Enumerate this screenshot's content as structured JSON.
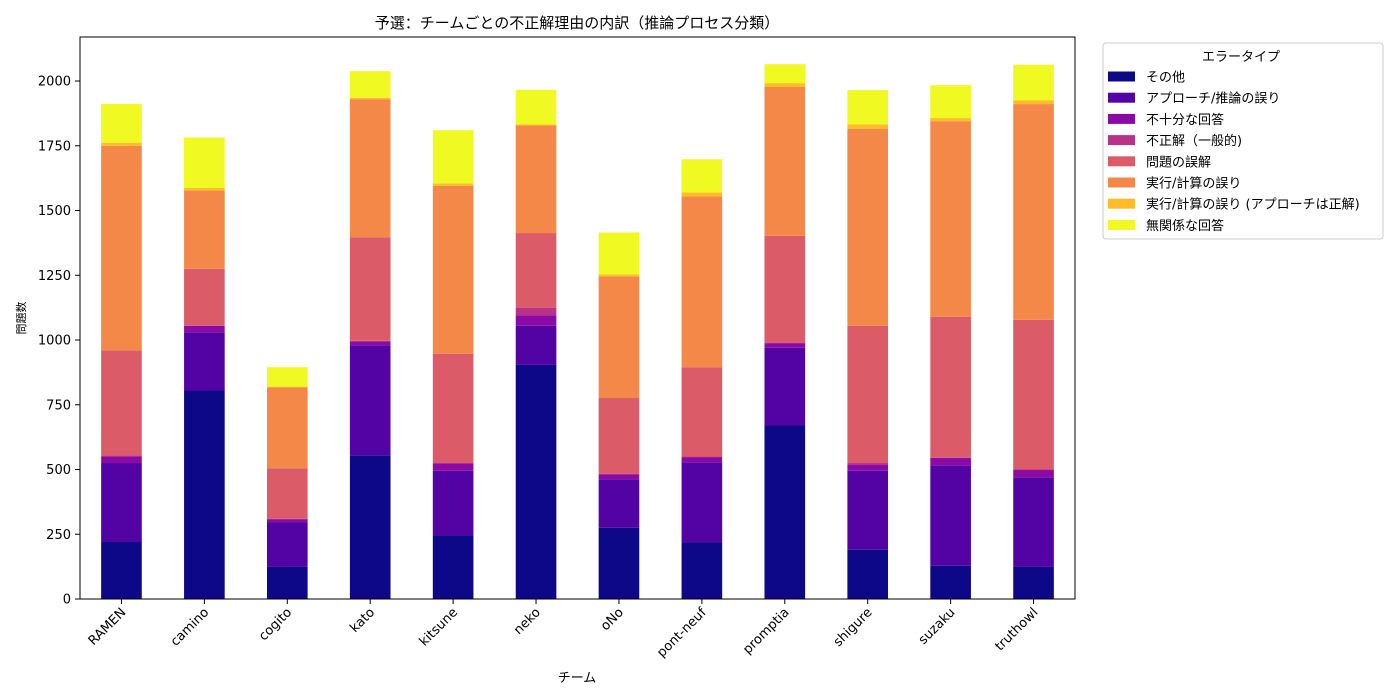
{
  "chart_data": {
    "type": "bar",
    "stacked": true,
    "title": "予選：チームごとの不正解理由の内訳（推論プロセス分類）",
    "xlabel": "チーム",
    "ylabel": "問題数",
    "ylim": [
      0,
      2170
    ],
    "yticks": [
      0,
      250,
      500,
      750,
      1000,
      1250,
      1500,
      1750,
      2000
    ],
    "grid": false,
    "legend": {
      "title": "エラータイプ",
      "placement": "outside-top-right"
    },
    "categories": [
      "RAMEN",
      "camino",
      "cogito",
      "kato",
      "kitsune",
      "neko",
      "oNo",
      "pont-neuf",
      "promptia",
      "shigure",
      "suzaku",
      "truthowl"
    ],
    "series": [
      {
        "name": "その他",
        "color": "#0d0887",
        "values": [
          220,
          805,
          125,
          555,
          245,
          905,
          275,
          218,
          670,
          190,
          128,
          125
        ]
      },
      {
        "name": "アプローチ/推論の誤り",
        "color": "#5302a3",
        "values": [
          305,
          225,
          172,
          425,
          250,
          150,
          187,
          310,
          300,
          305,
          387,
          345
        ]
      },
      {
        "name": "不十分な回答",
        "color": "#8b0aa5",
        "values": [
          25,
          25,
          10,
          15,
          28,
          40,
          20,
          20,
          18,
          25,
          30,
          28
        ]
      },
      {
        "name": "不正解（一般的)",
        "color": "#b83289",
        "values": [
          5,
          2,
          3,
          2,
          2,
          30,
          2,
          2,
          2,
          5,
          2,
          2
        ]
      },
      {
        "name": "問題の誤解",
        "color": "#db5c68",
        "values": [
          405,
          218,
          195,
          400,
          422,
          288,
          292,
          345,
          412,
          530,
          543,
          578
        ]
      },
      {
        "name": "実行/計算の誤り",
        "color": "#f48849",
        "values": [
          790,
          302,
          312,
          533,
          648,
          415,
          470,
          660,
          575,
          760,
          755,
          833
        ]
      },
      {
        "name": "実行/計算の誤り (アプローチは正解)",
        "color": "#febc2a",
        "values": [
          12,
          10,
          3,
          5,
          10,
          5,
          7,
          15,
          15,
          18,
          12,
          15
        ]
      },
      {
        "name": "無関係な回答",
        "color": "#f0f921",
        "values": [
          150,
          195,
          75,
          103,
          205,
          133,
          162,
          128,
          73,
          132,
          127,
          137
        ]
      }
    ]
  }
}
